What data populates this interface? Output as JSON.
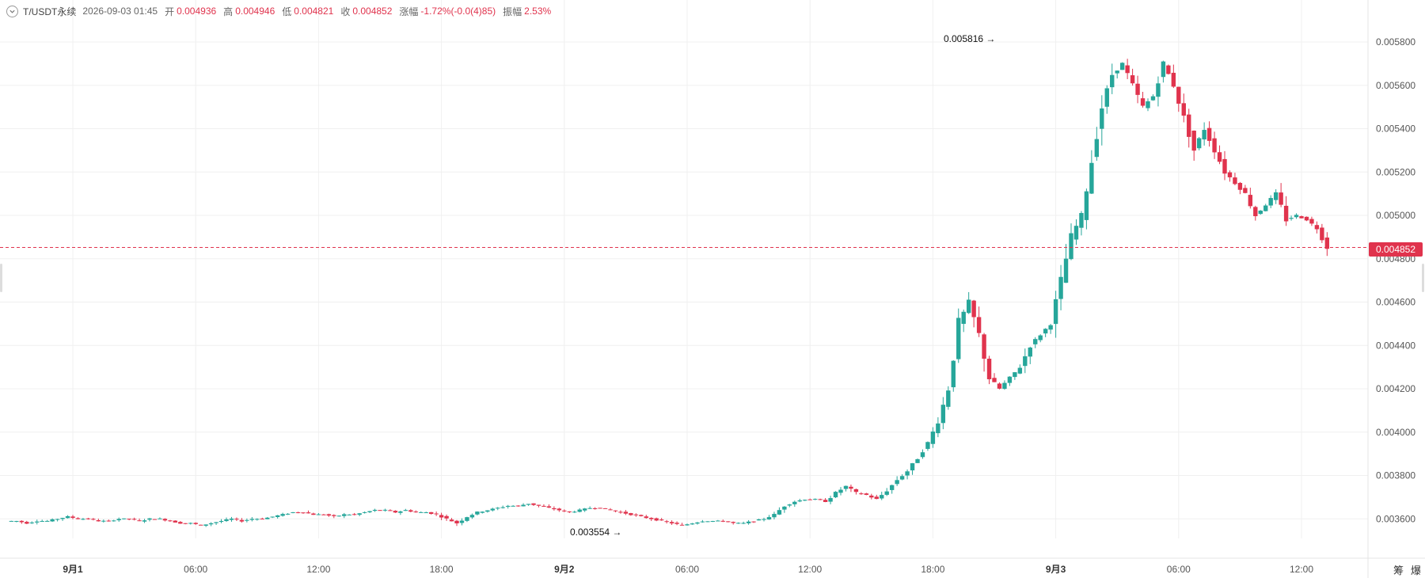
{
  "legend": {
    "symbol": "T/USDT永续",
    "time": "2026-09-03 01:45",
    "open_label": "开",
    "open": "0.004936",
    "high_label": "高",
    "high": "0.004946",
    "low_label": "低",
    "low": "0.004821",
    "close_label": "收",
    "close": "0.004852",
    "change_label": "涨幅",
    "change": "-1.72%(-0.0(4)85)",
    "amplitude_label": "振幅",
    "amplitude": "2.53%"
  },
  "current_price_label": "0.004852",
  "high_marker": "0.005816",
  "low_marker": "0.003554",
  "corner_buttons": [
    "筹",
    "爆"
  ],
  "colors": {
    "up": "#26a69a",
    "down": "#e0334d",
    "grid": "#f0f0f0",
    "axis_text": "#555"
  },
  "chart_data": {
    "type": "candlestick",
    "symbol": "T/USDT永续",
    "x_ticks": [
      "9月1",
      "06:00",
      "12:00",
      "18:00",
      "9月2",
      "06:00",
      "12:00",
      "18:00",
      "9月3",
      "06:00",
      "12:00"
    ],
    "y_ticks": [
      "0.005800",
      "0.005600",
      "0.005400",
      "0.005200",
      "0.005000",
      "0.004800",
      "0.004600",
      "0.004400",
      "0.004200",
      "0.004000",
      "0.003800",
      "0.003600"
    ],
    "ylim": [
      0.00345,
      0.00592
    ],
    "interval_minutes": 30,
    "x_start": "2026-08-31 21:00",
    "current_price": 0.004852,
    "max_point": {
      "price": 0.005816,
      "time": "2026-09-02 20:45"
    },
    "min_point": {
      "price": 0.003554,
      "time": "2026-09-02 02:30"
    },
    "price_path": [
      0.00359,
      0.00359,
      0.00358,
      0.00359,
      0.00359,
      0.0036,
      0.00361,
      0.0036,
      0.0036,
      0.00359,
      0.00359,
      0.0036,
      0.0036,
      0.00359,
      0.0036,
      0.0036,
      0.00359,
      0.00358,
      0.00358,
      0.00357,
      0.00358,
      0.00359,
      0.0036,
      0.00359,
      0.0036,
      0.0036,
      0.00361,
      0.00362,
      0.00363,
      0.00363,
      0.00362,
      0.00362,
      0.00361,
      0.00362,
      0.00362,
      0.00363,
      0.00364,
      0.00364,
      0.00363,
      0.00364,
      0.00363,
      0.00363,
      0.00362,
      0.0036,
      0.00358,
      0.00361,
      0.00363,
      0.00364,
      0.00365,
      0.00366,
      0.00366,
      0.00367,
      0.00366,
      0.00365,
      0.00364,
      0.00363,
      0.00364,
      0.00365,
      0.00365,
      0.00364,
      0.00363,
      0.00362,
      0.00361,
      0.0036,
      0.00359,
      0.00358,
      0.00357,
      0.00358,
      0.00359,
      0.00359,
      0.00359,
      0.00358,
      0.00358,
      0.00359,
      0.0036,
      0.00362,
      0.00366,
      0.00368,
      0.00369,
      0.00369,
      0.00368,
      0.00372,
      0.00375,
      0.00372,
      0.00371,
      0.00369,
      0.00373,
      0.00378,
      0.00382,
      0.00388,
      0.00395,
      0.00405,
      0.0042,
      0.0045,
      0.0046,
      0.00445,
      0.00425,
      0.0042,
      0.00425,
      0.0043,
      0.0044,
      0.00445,
      0.0045,
      0.0047,
      0.0049,
      0.005,
      0.00525,
      0.0055,
      0.00565,
      0.0057,
      0.0056,
      0.0055,
      0.00555,
      0.0057,
      0.0056,
      0.00545,
      0.0053,
      0.0054,
      0.0053,
      0.0052,
      0.00515,
      0.0051,
      0.005,
      0.00505,
      0.0051,
      0.00498,
      0.005,
      0.00498,
      0.00494,
      0.004852
    ]
  }
}
